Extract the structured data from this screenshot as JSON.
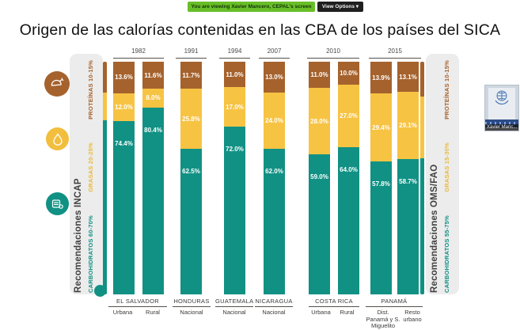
{
  "screen_share_bar": {
    "viewing_text": "You are viewing Xavier Mancero, CEPAL's screen",
    "view_options_label": "View Options",
    "chevron": "▾"
  },
  "slide": {
    "title": "Origen de las calorías contenidas en las CBA de los países del SICA"
  },
  "recommendations_left": {
    "title": "Recomendaciones INCAP",
    "carbohydrates": "CARBOHIDRATOS 60-70%",
    "fats": "GRASAS 20-25%",
    "proteins": "PROTEÍNAS 10-15%"
  },
  "recommendations_right": {
    "title": "Recomendaciones OMS/FAO",
    "carbohydrates": "CARBOHIDRATOS 55-75%",
    "fats": "GRASAS 15-30%",
    "proteins": "PROTEÍNAS 10-15%"
  },
  "video_tile": {
    "participant_name": "Xavier Manc..."
  },
  "colors": {
    "carbohydrates": "#119184",
    "fats": "#F7C343",
    "proteins": "#A5622D",
    "share_banner_green": "#69BE28",
    "panel_gray": "#ECECEC"
  },
  "chart_data": {
    "type": "bar",
    "stacked": true,
    "unit": "percent",
    "value_suffix": "%",
    "ylim": [
      0,
      100
    ],
    "series": [
      {
        "key": "proteins",
        "name": "Proteínas",
        "color": "#A5622D"
      },
      {
        "key": "fats",
        "name": "Grasas",
        "color": "#F7C343"
      },
      {
        "key": "carbohydrates",
        "name": "Carbohidratos",
        "color": "#119184"
      }
    ],
    "groups": [
      {
        "year": "1982",
        "country": "EL SALVADOR",
        "bars": [
          {
            "label": "Urbana",
            "proteins": 13.6,
            "fats": 12.0,
            "carbohydrates": 74.4
          },
          {
            "label": "Rural",
            "proteins": 11.6,
            "fats": 8.0,
            "carbohydrates": 80.4
          }
        ]
      },
      {
        "year": "1991",
        "country": "HONDURAS",
        "bars": [
          {
            "label": "Nacional",
            "proteins": 11.7,
            "fats": 25.8,
            "carbohydrates": 62.5
          }
        ]
      },
      {
        "year": "1994",
        "country": "GUATEMALA",
        "bars": [
          {
            "label": "Nacional",
            "proteins": 11.0,
            "fats": 17.0,
            "carbohydrates": 72.0
          }
        ]
      },
      {
        "year": "2007",
        "country": "NICARAGUA",
        "bars": [
          {
            "label": "Nacional",
            "proteins": 13.0,
            "fats": 24.0,
            "carbohydrates": 62.0
          }
        ]
      },
      {
        "year": "2010",
        "country": "COSTA RICA",
        "bars": [
          {
            "label": "Urbana",
            "proteins": 11.0,
            "fats": 28.0,
            "carbohydrates": 59.0
          },
          {
            "label": "Rural",
            "proteins": 10.0,
            "fats": 27.0,
            "carbohydrates": 64.0
          }
        ]
      },
      {
        "year": "2015",
        "country": "PANAMÁ",
        "bars": [
          {
            "label": "Dist. Panamá y S. Miguelito",
            "proteins": 13.9,
            "fats": 29.4,
            "carbohydrates": 57.8
          },
          {
            "label": "Resto urbano",
            "proteins": 13.1,
            "fats": 29.1,
            "carbohydrates": 58.7
          }
        ]
      }
    ]
  }
}
